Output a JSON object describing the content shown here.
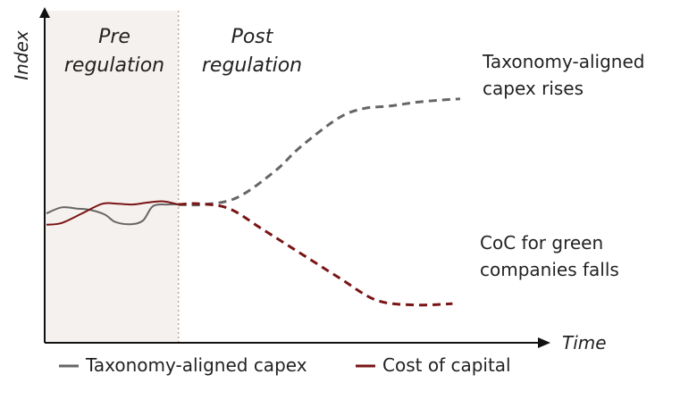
{
  "chart_data": {
    "type": "line",
    "title": "",
    "xlabel": "Time",
    "ylabel": "Index",
    "grid": false,
    "legend_position": "bottom",
    "phases": [
      {
        "name": "pre",
        "lines": [
          "Pre",
          "regulation"
        ]
      },
      {
        "name": "post",
        "lines": [
          "Post",
          "regulation"
        ]
      }
    ],
    "annotations": [
      {
        "series": "Taxonomy-aligned capex",
        "lines": [
          "Taxonomy-aligned",
          "capex rises"
        ]
      },
      {
        "series": "Cost of capital",
        "lines": [
          "CoC for green",
          "companies falls"
        ]
      }
    ],
    "series": [
      {
        "name": "Taxonomy-aligned capex",
        "color": "#666666",
        "pre": [
          [
            0,
            -0.15
          ],
          [
            6,
            0.1
          ],
          [
            12,
            0.05
          ],
          [
            17,
            0.0
          ],
          [
            23,
            -0.2
          ],
          [
            27,
            -0.5
          ],
          [
            33,
            -0.6
          ],
          [
            38,
            -0.45
          ],
          [
            42,
            0.15
          ],
          [
            48,
            0.22
          ],
          [
            52,
            0.22
          ]
        ],
        "post": [
          [
            52,
            0.22
          ],
          [
            62,
            0.22
          ],
          [
            75,
            0.5
          ],
          [
            90,
            1.6
          ],
          [
            100,
            2.6
          ],
          [
            115,
            3.8
          ],
          [
            125,
            4.2
          ],
          [
            135,
            4.3
          ],
          [
            145,
            4.45
          ],
          [
            155,
            4.55
          ],
          [
            163,
            4.6
          ]
        ]
      },
      {
        "name": "Cost of capital",
        "color": "#7a1414",
        "pre": [
          [
            0,
            -0.62
          ],
          [
            6,
            -0.55
          ],
          [
            14,
            -0.15
          ],
          [
            22,
            0.25
          ],
          [
            28,
            0.25
          ],
          [
            34,
            0.22
          ],
          [
            40,
            0.3
          ],
          [
            46,
            0.35
          ],
          [
            52,
            0.22
          ]
        ],
        "post": [
          [
            52,
            0.22
          ],
          [
            60,
            0.25
          ],
          [
            72,
            0.05
          ],
          [
            85,
            -0.8
          ],
          [
            100,
            -1.8
          ],
          [
            115,
            -2.8
          ],
          [
            130,
            -3.75
          ],
          [
            145,
            -3.95
          ],
          [
            160,
            -3.9
          ]
        ]
      }
    ]
  }
}
